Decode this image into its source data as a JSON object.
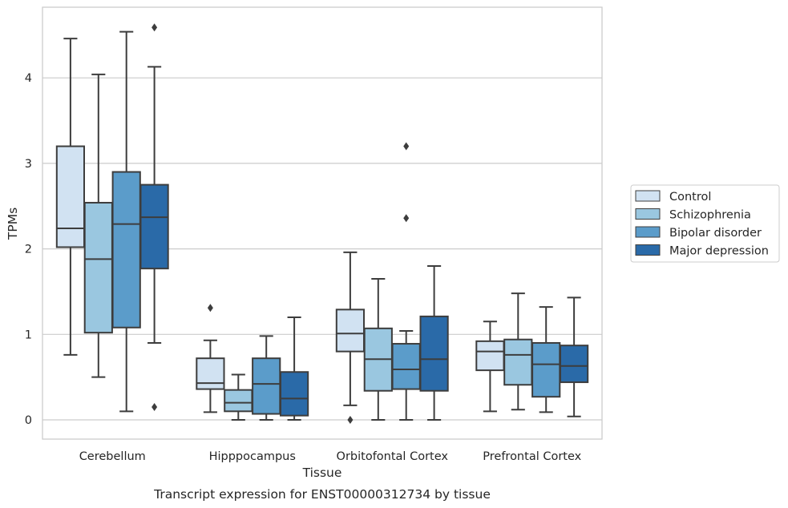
{
  "chart_data": {
    "type": "box",
    "title": "",
    "xlabel": "Tissue",
    "ylabel": "TPMs",
    "caption": "Transcript expression for ENST00000312734 by tissue",
    "ylim": [
      -0.22,
      4.83
    ],
    "yticks": [
      0,
      1,
      2,
      3,
      4
    ],
    "grid": "horizontal",
    "legend_position": "right",
    "categories": [
      "Cerebellum",
      "Hipppocampus",
      "Orbitofontal Cortex",
      "Prefrontal Cortex"
    ],
    "series": [
      {
        "name": "Control",
        "color": "#d1e2f2",
        "boxes": [
          {
            "whisker_low": 0.76,
            "q1": 2.02,
            "median": 2.24,
            "q3": 3.2,
            "whisker_high": 4.46,
            "outliers": []
          },
          {
            "whisker_low": 0.09,
            "q1": 0.36,
            "median": 0.43,
            "q3": 0.72,
            "whisker_high": 0.93,
            "outliers": [
              1.31
            ]
          },
          {
            "whisker_low": 0.17,
            "q1": 0.8,
            "median": 1.01,
            "q3": 1.29,
            "whisker_high": 1.96,
            "outliers": [
              0.0
            ]
          },
          {
            "whisker_low": 0.1,
            "q1": 0.58,
            "median": 0.8,
            "q3": 0.92,
            "whisker_high": 1.15,
            "outliers": []
          }
        ]
      },
      {
        "name": "Schizophrenia",
        "color": "#9ac7e0",
        "boxes": [
          {
            "whisker_low": 0.5,
            "q1": 1.02,
            "median": 1.88,
            "q3": 2.54,
            "whisker_high": 4.04,
            "outliers": []
          },
          {
            "whisker_low": 0.0,
            "q1": 0.1,
            "median": 0.2,
            "q3": 0.35,
            "whisker_high": 0.53,
            "outliers": []
          },
          {
            "whisker_low": 0.0,
            "q1": 0.34,
            "median": 0.71,
            "q3": 1.07,
            "whisker_high": 1.65,
            "outliers": []
          },
          {
            "whisker_low": 0.12,
            "q1": 0.41,
            "median": 0.76,
            "q3": 0.94,
            "whisker_high": 1.48,
            "outliers": []
          }
        ]
      },
      {
        "name": "Bipolar disorder",
        "color": "#5b9cca",
        "boxes": [
          {
            "whisker_low": 0.1,
            "q1": 1.08,
            "median": 2.29,
            "q3": 2.9,
            "whisker_high": 4.54,
            "outliers": []
          },
          {
            "whisker_low": 0.0,
            "q1": 0.07,
            "median": 0.42,
            "q3": 0.72,
            "whisker_high": 0.98,
            "outliers": []
          },
          {
            "whisker_low": 0.0,
            "q1": 0.36,
            "median": 0.59,
            "q3": 0.89,
            "whisker_high": 1.04,
            "outliers": [
              2.36,
              3.2
            ]
          },
          {
            "whisker_low": 0.09,
            "q1": 0.27,
            "median": 0.65,
            "q3": 0.9,
            "whisker_high": 1.32,
            "outliers": []
          }
        ]
      },
      {
        "name": "Major depression",
        "color": "#2a6aa8",
        "boxes": [
          {
            "whisker_low": 0.9,
            "q1": 1.77,
            "median": 2.37,
            "q3": 2.75,
            "whisker_high": 4.13,
            "outliers": [
              0.15,
              4.59
            ]
          },
          {
            "whisker_low": 0.0,
            "q1": 0.05,
            "median": 0.25,
            "q3": 0.56,
            "whisker_high": 1.2,
            "outliers": []
          },
          {
            "whisker_low": 0.0,
            "q1": 0.34,
            "median": 0.71,
            "q3": 1.21,
            "whisker_high": 1.8,
            "outliers": []
          },
          {
            "whisker_low": 0.04,
            "q1": 0.44,
            "median": 0.63,
            "q3": 0.87,
            "whisker_high": 1.43,
            "outliers": []
          }
        ]
      }
    ]
  }
}
